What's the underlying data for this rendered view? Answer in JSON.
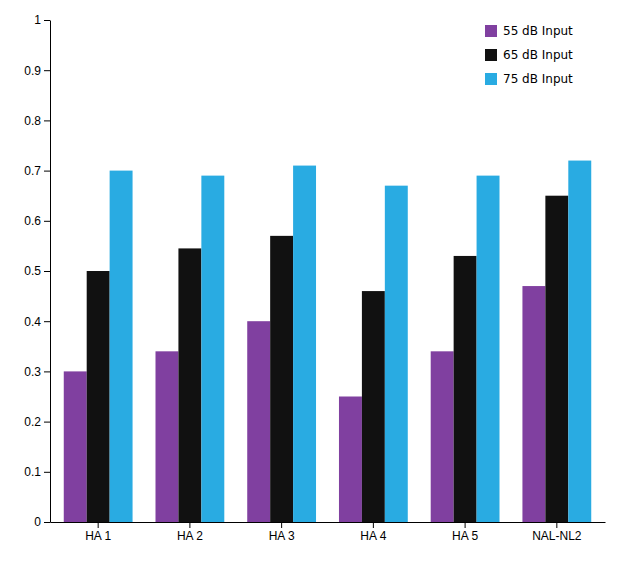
{
  "chart_data": {
    "type": "bar",
    "categories": [
      "HA 1",
      "HA 2",
      "HA 3",
      "HA 4",
      "HA 5",
      "NAL-NL2"
    ],
    "series": [
      {
        "name": "55 dB Input",
        "color": "#8040A0",
        "values": [
          0.3,
          0.34,
          0.4,
          0.25,
          0.34,
          0.47
        ]
      },
      {
        "name": "65 dB Input",
        "color": "#111111",
        "values": [
          0.5,
          0.545,
          0.57,
          0.46,
          0.53,
          0.65
        ]
      },
      {
        "name": "75 dB Input",
        "color": "#29ABE2",
        "values": [
          0.7,
          0.69,
          0.71,
          0.67,
          0.69,
          0.72
        ]
      }
    ],
    "ylim": [
      0,
      1.0
    ],
    "yticks": [
      0,
      0.1,
      0.2,
      0.3,
      0.4,
      0.5,
      0.6,
      0.7,
      0.8,
      0.9,
      1
    ],
    "grid": false,
    "legend": "upper right"
  }
}
